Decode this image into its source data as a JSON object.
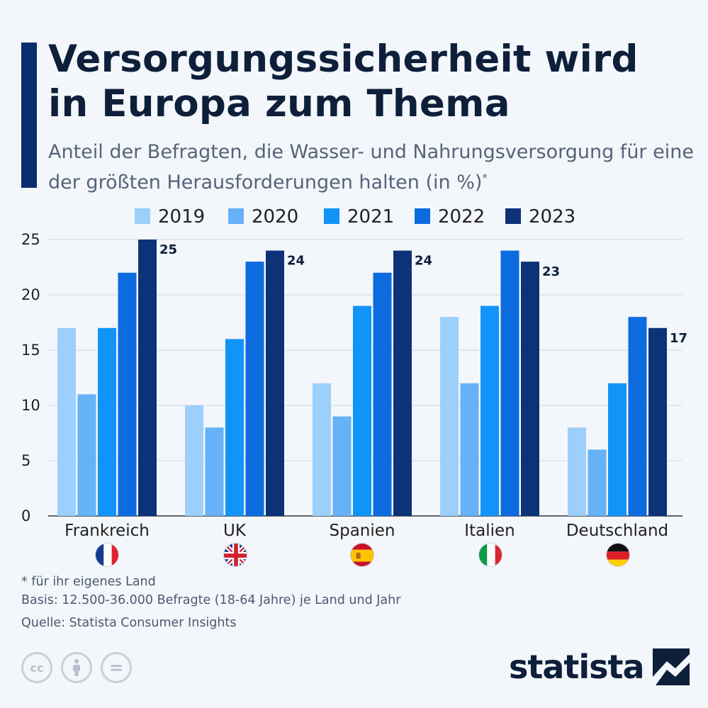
{
  "header": {
    "title": "Versorgungssicherheit wird in Europa zum Thema",
    "subtitle": "Anteil der Befragten, die Wasser- und Nahrungsversorgung für eine der größten Herausforderungen halten (in %)",
    "subtitle_mark": "*"
  },
  "chart_data": {
    "type": "bar",
    "title": "Versorgungssicherheit wird in Europa zum Thema",
    "categories": [
      "Frankreich",
      "UK",
      "Spanien",
      "Italien",
      "Deutschland"
    ],
    "series": [
      {
        "name": "2019",
        "color": "#9ccffb",
        "values": [
          17,
          10,
          12,
          18,
          8
        ]
      },
      {
        "name": "2020",
        "color": "#66b2f8",
        "values": [
          11,
          8,
          9,
          12,
          6
        ]
      },
      {
        "name": "2021",
        "color": "#1194f8",
        "values": [
          17,
          16,
          19,
          19,
          12
        ]
      },
      {
        "name": "2022",
        "color": "#0d6be0",
        "values": [
          22,
          23,
          22,
          24,
          18
        ]
      },
      {
        "name": "2023",
        "color": "#0c3378",
        "values": [
          25,
          24,
          24,
          23,
          17
        ]
      }
    ],
    "labeled_series": "2023",
    "yticks": [
      0,
      5,
      10,
      15,
      20,
      25
    ],
    "ylim": [
      0,
      25
    ],
    "xlabel": "",
    "ylabel": "",
    "legend": "top-center",
    "grid": true
  },
  "flags": [
    "france-flag",
    "uk-flag",
    "spain-flag",
    "italy-flag",
    "germany-flag"
  ],
  "footer": {
    "note": "* für ihr eigenes Land",
    "basis": "Basis: 12.500-36.000 Befragte (18-64 Jahre) je Land und Jahr",
    "source": "Quelle: Statista Consumer Insights",
    "license_icons": [
      "cc-icon",
      "by-icon",
      "nd-icon"
    ],
    "cc_label": "cc",
    "nd_label": "=",
    "logo_text": "statista"
  }
}
